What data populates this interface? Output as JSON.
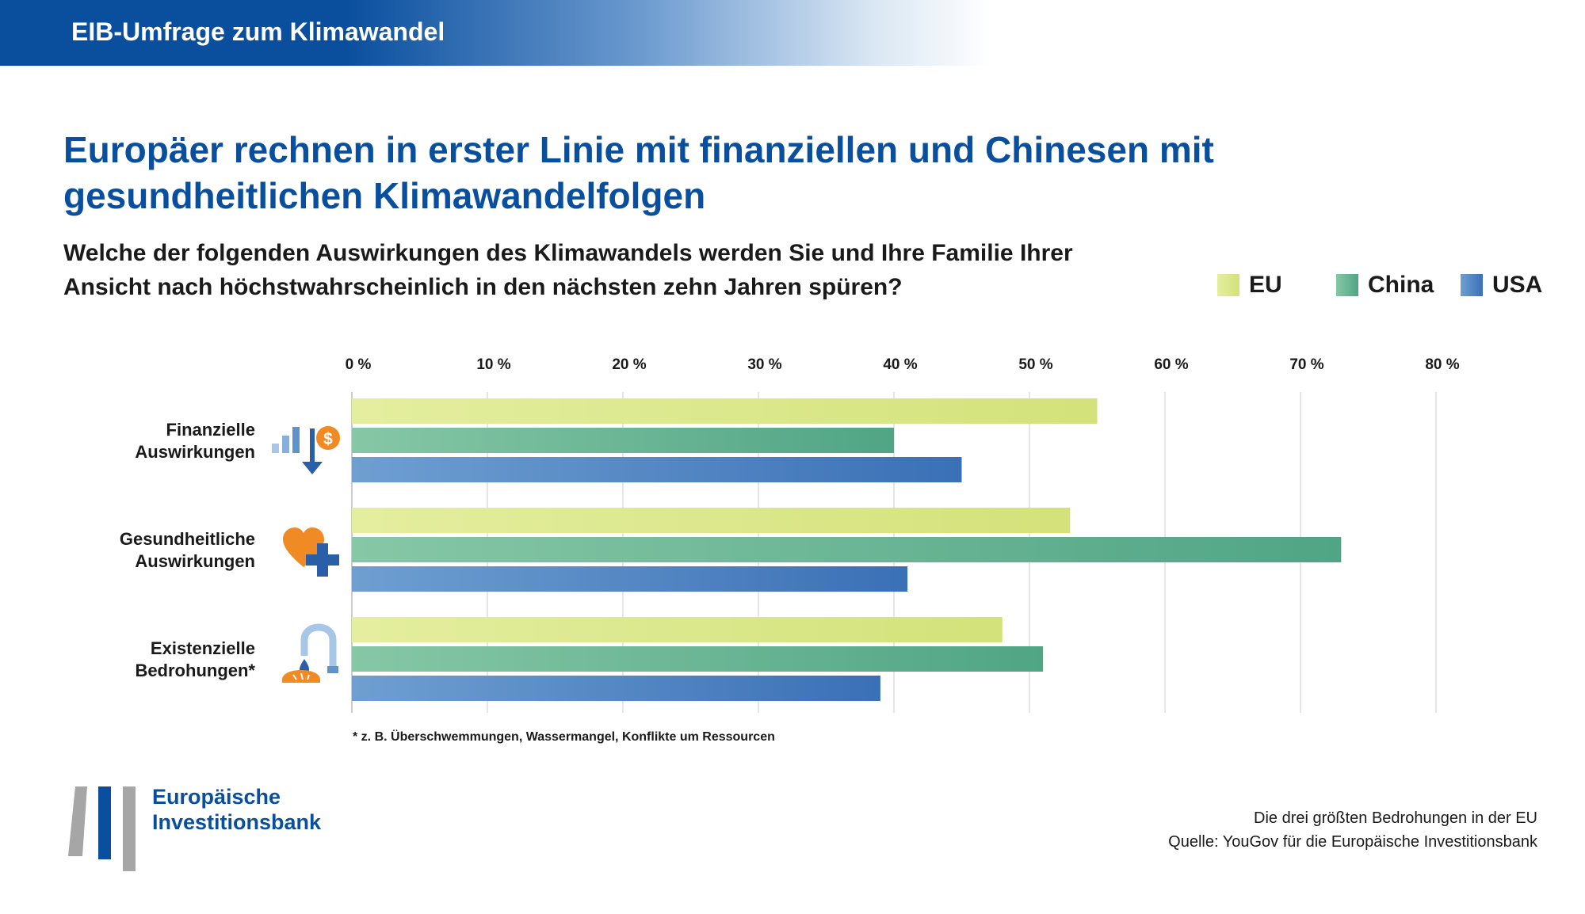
{
  "banner": {
    "title": "EIB-Umfrage zum Klimawandel"
  },
  "headline": {
    "line1": "Europäer rechnen in erster Linie mit finanziellen und Chinesen mit",
    "line2": "gesundheitlichen Klimawandelfolgen"
  },
  "question": {
    "line1": "Welche der folgenden Auswirkungen des Klimawandels werden Sie und Ihre Familie Ihrer",
    "line2": "Ansicht nach höchstwahrscheinlich in den nächsten zehn Jahren spüren?"
  },
  "chart_data": {
    "type": "bar",
    "orientation": "horizontal",
    "title": "Europäer rechnen in erster Linie mit finanziellen und Chinesen mit gesundheitlichen Klimawandelfolgen",
    "subtitle": "Welche der folgenden Auswirkungen des Klimawandels werden Sie und Ihre Familie Ihrer Ansicht nach höchstwahrscheinlich in den nächsten zehn Jahren spüren?",
    "xlim": [
      0,
      80
    ],
    "x_ticks": [
      {
        "value": 0,
        "label": "0 %"
      },
      {
        "value": 10,
        "label": "10 %"
      },
      {
        "value": 20,
        "label": "20 %"
      },
      {
        "value": 30,
        "label": "30 %"
      },
      {
        "value": 40,
        "label": "40 %"
      },
      {
        "value": 50,
        "label": "50 %"
      },
      {
        "value": 60,
        "label": "60 %"
      },
      {
        "value": 70,
        "label": "70 %"
      },
      {
        "value": 80,
        "label": "80 %"
      }
    ],
    "grid": true,
    "legend_position": "top-right",
    "categories": [
      {
        "line1": "Finanzielle",
        "line2": "Auswirkungen",
        "icon": "financial-icon"
      },
      {
        "line1": "Gesundheitliche",
        "line2": "Auswirkungen",
        "icon": "health-icon"
      },
      {
        "line1": "Existenzielle",
        "line2": "Bedrohungen*",
        "icon": "existential-icon"
      }
    ],
    "series": [
      {
        "name": "EU",
        "values": [
          55,
          53,
          48
        ],
        "colors": [
          "#e4ee9f",
          "#d3e27a"
        ]
      },
      {
        "name": "China",
        "values": [
          40,
          73,
          51
        ],
        "colors": [
          "#86c7a6",
          "#50a585"
        ]
      },
      {
        "name": "USA",
        "values": [
          45,
          41,
          39
        ],
        "colors": [
          "#6f9fd1",
          "#3a70b6"
        ]
      }
    ]
  },
  "footnote": "* z. B. Überschwemmungen, Wassermangel, Konflikte um Ressourcen",
  "logo": {
    "line1": "Europäische",
    "line2": "Investitionsbank"
  },
  "source": {
    "line1": "Die drei größten Bedrohungen in der EU",
    "line2": "Quelle: YouGov für die Europäische Investitionsbank"
  },
  "colors": {
    "brand_blue": "#0a4f9e",
    "icon_orange": "#f08a24",
    "icon_blue": "#2a5fa8",
    "grid": "#dddddd"
  }
}
